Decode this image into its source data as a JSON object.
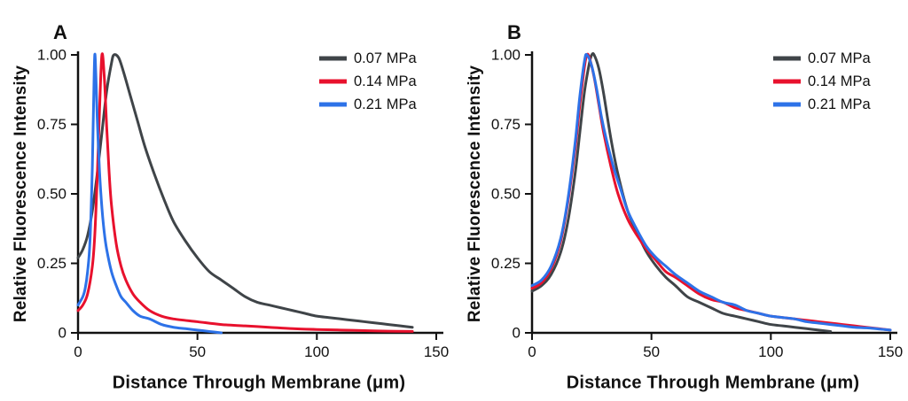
{
  "figure": {
    "background": "#ffffff",
    "axis_color": "#111111"
  },
  "chart_data": [
    {
      "type": "line",
      "panel_label": "A",
      "xlabel": "Distance Through Membrane (μm)",
      "ylabel": "Relative Fluorescence Intensity",
      "xlim": [
        0,
        150
      ],
      "ylim": [
        0,
        1.0
      ],
      "x_ticks": [
        0,
        50,
        100,
        150
      ],
      "x_tick_labels": [
        "0",
        "50",
        "100",
        "150"
      ],
      "y_ticks": [
        0,
        0.25,
        0.5,
        0.75,
        1.0
      ],
      "y_tick_labels": [
        "0",
        "0.25",
        "0.50",
        "0.75",
        "1.00"
      ],
      "grid": false,
      "legend_position": "top-right",
      "series": [
        {
          "name": "0.07 MPa",
          "color": "#3f4448",
          "points": [
            [
              0,
              0.27
            ],
            [
              2,
              0.3
            ],
            [
              4,
              0.35
            ],
            [
              6,
              0.44
            ],
            [
              8,
              0.57
            ],
            [
              10,
              0.72
            ],
            [
              12,
              0.87
            ],
            [
              14,
              0.97
            ],
            [
              15,
              1.0
            ],
            [
              17,
              0.99
            ],
            [
              19,
              0.94
            ],
            [
              22,
              0.85
            ],
            [
              25,
              0.76
            ],
            [
              28,
              0.67
            ],
            [
              32,
              0.57
            ],
            [
              36,
              0.48
            ],
            [
              40,
              0.4
            ],
            [
              45,
              0.33
            ],
            [
              50,
              0.27
            ],
            [
              55,
              0.22
            ],
            [
              60,
              0.19
            ],
            [
              65,
              0.16
            ],
            [
              70,
              0.13
            ],
            [
              75,
              0.11
            ],
            [
              80,
              0.1
            ],
            [
              85,
              0.09
            ],
            [
              90,
              0.08
            ],
            [
              95,
              0.07
            ],
            [
              100,
              0.06
            ],
            [
              105,
              0.055
            ],
            [
              110,
              0.05
            ],
            [
              115,
              0.045
            ],
            [
              120,
              0.04
            ],
            [
              125,
              0.035
            ],
            [
              130,
              0.03
            ],
            [
              135,
              0.025
            ],
            [
              140,
              0.02
            ]
          ]
        },
        {
          "name": "0.14 MPa",
          "color": "#e8112d",
          "points": [
            [
              0,
              0.08
            ],
            [
              2,
              0.1
            ],
            [
              4,
              0.14
            ],
            [
              6,
              0.24
            ],
            [
              7,
              0.35
            ],
            [
              8,
              0.55
            ],
            [
              9,
              0.8
            ],
            [
              10,
              1.0
            ],
            [
              11,
              0.92
            ],
            [
              12,
              0.74
            ],
            [
              13,
              0.58
            ],
            [
              14,
              0.46
            ],
            [
              16,
              0.32
            ],
            [
              18,
              0.24
            ],
            [
              20,
              0.19
            ],
            [
              23,
              0.14
            ],
            [
              26,
              0.11
            ],
            [
              30,
              0.08
            ],
            [
              35,
              0.06
            ],
            [
              40,
              0.05
            ],
            [
              50,
              0.04
            ],
            [
              60,
              0.03
            ],
            [
              70,
              0.025
            ],
            [
              80,
              0.02
            ],
            [
              90,
              0.015
            ],
            [
              100,
              0.012
            ],
            [
              110,
              0.01
            ],
            [
              120,
              0.008
            ],
            [
              130,
              0.006
            ],
            [
              140,
              0.005
            ]
          ]
        },
        {
          "name": "0.21 MPa",
          "color": "#2d72e8",
          "points": [
            [
              0,
              0.1
            ],
            [
              2,
              0.13
            ],
            [
              3,
              0.16
            ],
            [
              4,
              0.22
            ],
            [
              5,
              0.33
            ],
            [
              6,
              0.6
            ],
            [
              6.5,
              0.82
            ],
            [
              7,
              1.0
            ],
            [
              7.5,
              0.92
            ],
            [
              8,
              0.78
            ],
            [
              9,
              0.58
            ],
            [
              10,
              0.45
            ],
            [
              11,
              0.36
            ],
            [
              12,
              0.3
            ],
            [
              14,
              0.22
            ],
            [
              16,
              0.17
            ],
            [
              18,
              0.13
            ],
            [
              20,
              0.11
            ],
            [
              23,
              0.08
            ],
            [
              26,
              0.06
            ],
            [
              30,
              0.05
            ],
            [
              35,
              0.03
            ],
            [
              40,
              0.02
            ],
            [
              45,
              0.015
            ],
            [
              50,
              0.01
            ],
            [
              55,
              0.005
            ],
            [
              60,
              0.0
            ]
          ]
        }
      ]
    },
    {
      "type": "line",
      "panel_label": "B",
      "xlabel": "Distance Through Membrane (μm)",
      "ylabel": "Relative Fluorescence Intensity",
      "xlim": [
        0,
        150
      ],
      "ylim": [
        0,
        1.0
      ],
      "x_ticks": [
        0,
        50,
        100,
        150
      ],
      "x_tick_labels": [
        "0",
        "50",
        "100",
        "150"
      ],
      "y_ticks": [
        0,
        0.25,
        0.5,
        0.75,
        1.0
      ],
      "y_tick_labels": [
        "0",
        "0.25",
        "0.50",
        "0.75",
        "1.00"
      ],
      "grid": false,
      "legend_position": "top-right",
      "series": [
        {
          "name": "0.07 MPa",
          "color": "#3f4448",
          "points": [
            [
              0,
              0.15
            ],
            [
              4,
              0.17
            ],
            [
              8,
              0.21
            ],
            [
              12,
              0.29
            ],
            [
              15,
              0.4
            ],
            [
              18,
              0.57
            ],
            [
              20,
              0.72
            ],
            [
              22,
              0.87
            ],
            [
              24,
              0.97
            ],
            [
              25,
              1.0
            ],
            [
              26,
              1.0
            ],
            [
              28,
              0.95
            ],
            [
              30,
              0.86
            ],
            [
              33,
              0.7
            ],
            [
              36,
              0.57
            ],
            [
              40,
              0.44
            ],
            [
              44,
              0.36
            ],
            [
              48,
              0.29
            ],
            [
              52,
              0.24
            ],
            [
              56,
              0.2
            ],
            [
              60,
              0.17
            ],
            [
              65,
              0.13
            ],
            [
              70,
              0.11
            ],
            [
              75,
              0.09
            ],
            [
              80,
              0.07
            ],
            [
              85,
              0.06
            ],
            [
              90,
              0.05
            ],
            [
              95,
              0.04
            ],
            [
              100,
              0.03
            ],
            [
              105,
              0.025
            ],
            [
              110,
              0.02
            ],
            [
              115,
              0.015
            ],
            [
              120,
              0.01
            ],
            [
              125,
              0.005
            ]
          ]
        },
        {
          "name": "0.14 MPa",
          "color": "#e8112d",
          "points": [
            [
              0,
              0.16
            ],
            [
              4,
              0.18
            ],
            [
              8,
              0.23
            ],
            [
              12,
              0.33
            ],
            [
              15,
              0.47
            ],
            [
              18,
              0.66
            ],
            [
              20,
              0.82
            ],
            [
              22,
              0.96
            ],
            [
              23,
              1.0
            ],
            [
              24,
              0.99
            ],
            [
              26,
              0.92
            ],
            [
              28,
              0.82
            ],
            [
              30,
              0.72
            ],
            [
              33,
              0.6
            ],
            [
              36,
              0.5
            ],
            [
              40,
              0.41
            ],
            [
              44,
              0.35
            ],
            [
              48,
              0.3
            ],
            [
              52,
              0.26
            ],
            [
              56,
              0.22
            ],
            [
              60,
              0.2
            ],
            [
              65,
              0.17
            ],
            [
              70,
              0.14
            ],
            [
              75,
              0.12
            ],
            [
              80,
              0.11
            ],
            [
              85,
              0.09
            ],
            [
              90,
              0.08
            ],
            [
              95,
              0.07
            ],
            [
              100,
              0.06
            ],
            [
              105,
              0.055
            ],
            [
              110,
              0.05
            ],
            [
              115,
              0.045
            ],
            [
              120,
              0.04
            ],
            [
              125,
              0.035
            ],
            [
              130,
              0.03
            ],
            [
              135,
              0.025
            ],
            [
              140,
              0.02
            ],
            [
              145,
              0.015
            ],
            [
              150,
              0.01
            ]
          ]
        },
        {
          "name": "0.21 MPa",
          "color": "#2d72e8",
          "points": [
            [
              0,
              0.17
            ],
            [
              4,
              0.19
            ],
            [
              8,
              0.24
            ],
            [
              12,
              0.34
            ],
            [
              15,
              0.48
            ],
            [
              18,
              0.68
            ],
            [
              20,
              0.85
            ],
            [
              22,
              0.98
            ],
            [
              23,
              1.0
            ],
            [
              25,
              0.96
            ],
            [
              27,
              0.88
            ],
            [
              29,
              0.78
            ],
            [
              31,
              0.7
            ],
            [
              34,
              0.6
            ],
            [
              37,
              0.52
            ],
            [
              40,
              0.44
            ],
            [
              44,
              0.37
            ],
            [
              48,
              0.31
            ],
            [
              52,
              0.27
            ],
            [
              56,
              0.24
            ],
            [
              60,
              0.21
            ],
            [
              65,
              0.18
            ],
            [
              70,
              0.15
            ],
            [
              75,
              0.13
            ],
            [
              80,
              0.11
            ],
            [
              85,
              0.1
            ],
            [
              90,
              0.08
            ],
            [
              95,
              0.07
            ],
            [
              100,
              0.06
            ],
            [
              105,
              0.055
            ],
            [
              110,
              0.05
            ],
            [
              115,
              0.04
            ],
            [
              120,
              0.035
            ],
            [
              125,
              0.03
            ],
            [
              130,
              0.025
            ],
            [
              135,
              0.02
            ],
            [
              140,
              0.018
            ],
            [
              145,
              0.014
            ],
            [
              150,
              0.01
            ]
          ]
        }
      ]
    }
  ]
}
